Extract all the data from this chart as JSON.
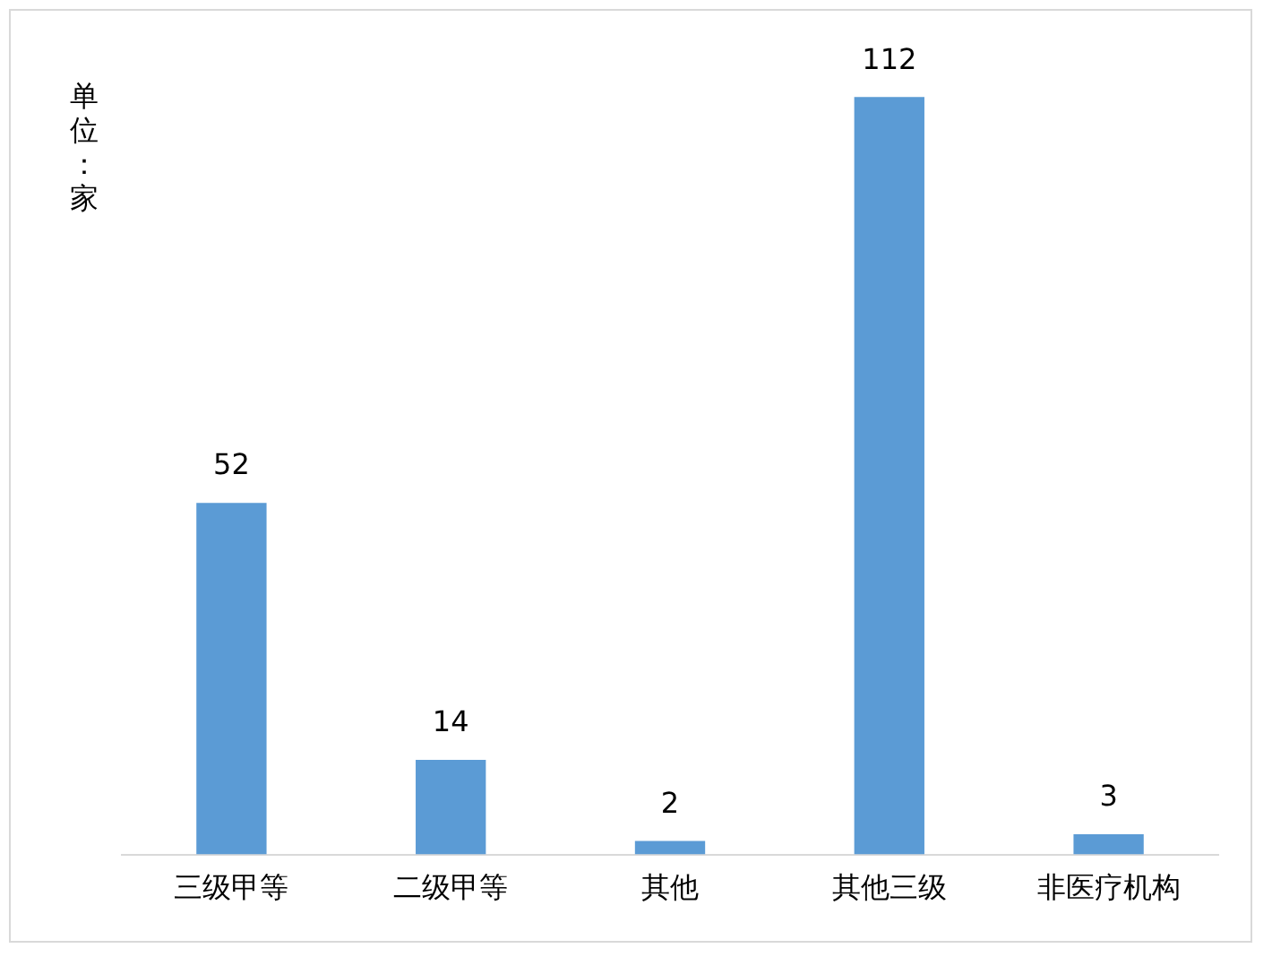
{
  "chart_data": {
    "type": "bar",
    "ylabel": "单位：家",
    "categories": [
      "三级甲等",
      "二级甲等",
      "其他",
      "其他三级",
      "非医疗机构"
    ],
    "values": [
      52,
      14,
      2,
      112,
      3
    ],
    "color": "#5b9bd5",
    "data_labels": true,
    "grid": false,
    "legend": false,
    "tick_labels": "x"
  }
}
